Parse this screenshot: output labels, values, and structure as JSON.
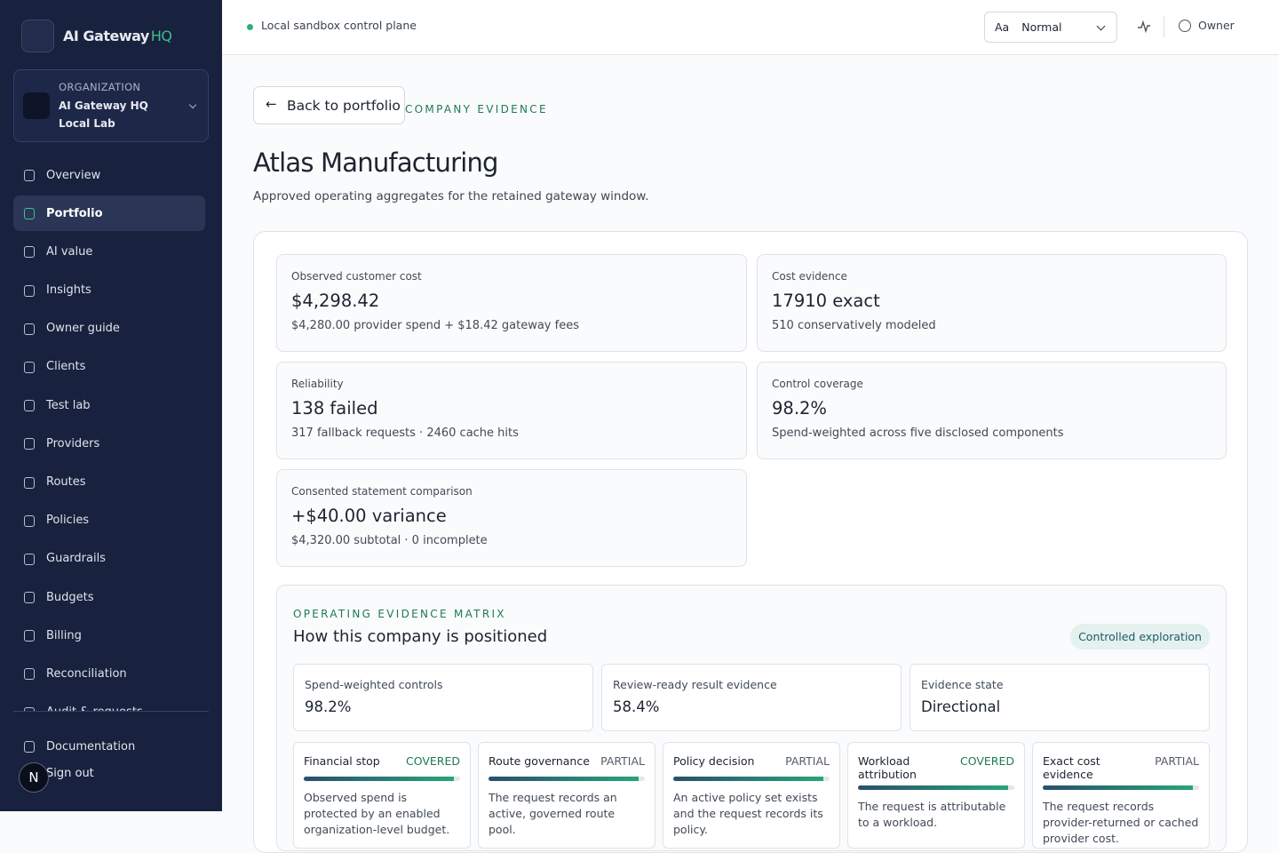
{
  "sidebar": {
    "brand": {
      "name": "AI Gateway",
      "suffix": "HQ"
    },
    "organization": {
      "label": "ORGANIZATION",
      "name": "AI Gateway HQ Local Lab"
    },
    "active_index": 1,
    "nav": [
      "Overview",
      "Portfolio",
      "AI value",
      "Insights",
      "Owner guide",
      "Clients",
      "Test lab",
      "Providers",
      "Routes",
      "Policies",
      "Guardrails",
      "Budgets",
      "Billing",
      "Reconciliation",
      "Audit & requests"
    ],
    "footer": {
      "documentation": "Documentation",
      "sign_out": "Sign out",
      "avatar": "N"
    }
  },
  "topbar": {
    "status": "Local sandbox control plane",
    "font_icon": "Aa",
    "font_size": "Normal",
    "user": "Owner"
  },
  "header": {
    "back": "Back to portfolio",
    "eyebrow": "COMPANY EVIDENCE",
    "title": "Atlas Manufacturing",
    "description": "Approved operating aggregates for the retained gateway window."
  },
  "metrics": [
    {
      "label": "Observed customer cost",
      "value": "$4,298.42",
      "detail": "$4,280.00 provider spend + $18.42 gateway fees"
    },
    {
      "label": "Cost evidence",
      "value": "17910 exact",
      "detail": "510 conservatively modeled"
    },
    {
      "label": "Reliability",
      "value": "138 failed",
      "detail": "317 fallback requests · 2460 cache hits"
    },
    {
      "label": "Control coverage",
      "value": "98.2%",
      "detail": "Spend-weighted across five disclosed components"
    },
    {
      "label": "Consented statement comparison",
      "value": "+$40.00 variance",
      "detail": "$4,320.00 subtotal · 0 incomplete"
    }
  ],
  "matrix": {
    "eyebrow": "OPERATING EVIDENCE MATRIX",
    "title": "How this company is positioned",
    "badge": "Controlled exploration",
    "summary": [
      {
        "label": "Spend-weighted controls",
        "value": "98.2%"
      },
      {
        "label": "Review-ready result evidence",
        "value": "58.4%"
      },
      {
        "label": "Evidence state",
        "value": "Directional"
      }
    ],
    "components": [
      {
        "name": "Financial stop",
        "status": "COVERED",
        "status_color": "#1f7a50",
        "description": "Observed spend is protected by an enabled organization-level budget."
      },
      {
        "name": "Route governance",
        "status": "PARTIAL",
        "status_color": "#555d68",
        "description": "The request records an active, governed route pool."
      },
      {
        "name": "Policy decision",
        "status": "PARTIAL",
        "status_color": "#555d68",
        "description": "An active policy set exists and the request records its policy."
      },
      {
        "name": "Workload attribution",
        "status": "COVERED",
        "status_color": "#1f7a50",
        "description": "The request is attributable to a workload."
      },
      {
        "name": "Exact cost evidence",
        "status": "PARTIAL",
        "status_color": "#555d68",
        "description": "The request records provider-returned or cached provider cost."
      }
    ]
  }
}
